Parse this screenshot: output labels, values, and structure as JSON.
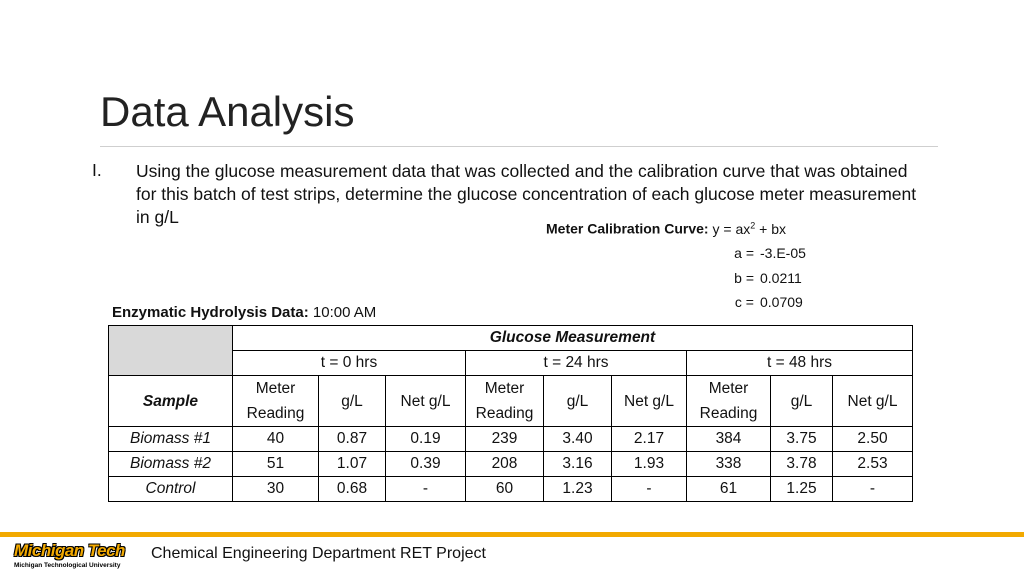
{
  "slide": {
    "title": "Data Analysis",
    "list_marker": "I.",
    "list_text": "Using the glucose measurement data that was collected and the calibration curve that was obtained for this batch of test strips, determine the glucose concentration of each glucose meter measurement in g/L"
  },
  "calibration": {
    "label": "Meter Calibration Curve:",
    "equation": "y = ax",
    "exponent": "2",
    "equation_tail": " + bx",
    "params": [
      {
        "key": "a =",
        "value": "-3.E-05"
      },
      {
        "key": "b =",
        "value": "0.0211"
      },
      {
        "key": "c =",
        "value": "0.0709"
      }
    ]
  },
  "enzymatic": {
    "label": "Enzymatic Hydrolysis Data:",
    "time": "10:00 AM"
  },
  "table": {
    "group_header": "Glucose Measurement",
    "time_headers": [
      "t = 0 hrs",
      "t = 24 hrs",
      "t = 48 hrs"
    ],
    "sample_header": "Sample",
    "col_headers": [
      "Meter Reading",
      "g/L",
      "Net g/L",
      "Meter Reading",
      "g/L",
      "Net g/L",
      "Meter Reading",
      "g/L",
      "Net g/L"
    ],
    "rows": [
      {
        "sample": "Biomass #1",
        "cells": [
          "40",
          "0.87",
          "0.19",
          "239",
          "3.40",
          "2.17",
          "384",
          "3.75",
          "2.50"
        ]
      },
      {
        "sample": "Biomass #2",
        "cells": [
          "51",
          "1.07",
          "0.39",
          "208",
          "3.16",
          "1.93",
          "338",
          "3.78",
          "2.53"
        ]
      },
      {
        "sample": "Control",
        "cells": [
          "30",
          "0.68",
          "-",
          "60",
          "1.23",
          "-",
          "61",
          "1.25",
          "-"
        ]
      }
    ]
  },
  "footer": {
    "logo_main": "Michigan Tech",
    "logo_sub": "Michigan Technological University",
    "text": "Chemical Engineering Department RET Project",
    "accent": "#f2a900"
  }
}
